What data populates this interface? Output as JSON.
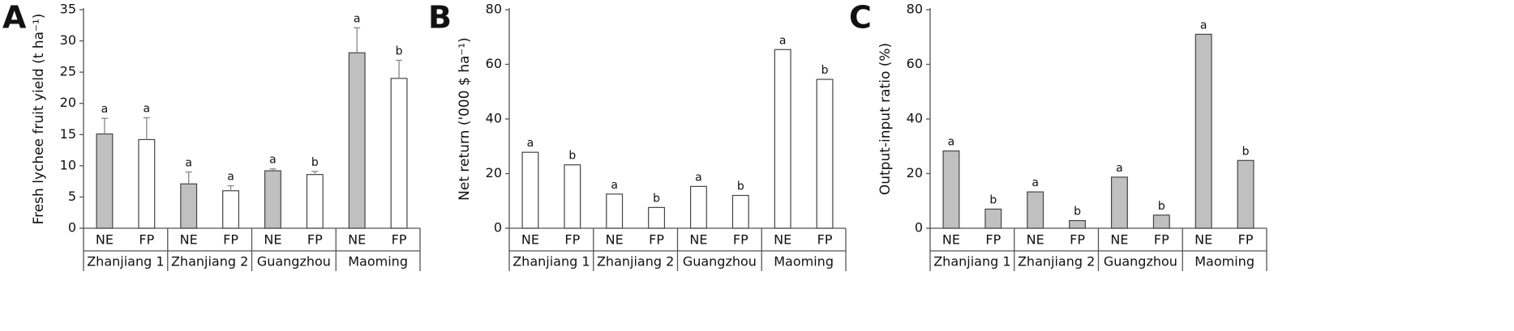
{
  "chart_data": [
    {
      "type": "bar",
      "panel": "A",
      "y_label": "Fresh lychee fruit yield (t ha⁻¹)",
      "groups": [
        "Zhanjiang 1",
        "Zhanjiang 2",
        "Guangzhou",
        "Maoming"
      ],
      "series": [
        {
          "name": "NE",
          "color": "#c0c0c0",
          "values": [
            15.1,
            7.1,
            9.2,
            28.1
          ],
          "errors": [
            2.5,
            1.9,
            0.3,
            4.0
          ],
          "letters": [
            "a",
            "a",
            "a",
            "a"
          ]
        },
        {
          "name": "FP",
          "color": "#ffffff",
          "values": [
            14.2,
            6.0,
            8.6,
            24.0
          ],
          "errors": [
            3.5,
            0.8,
            0.5,
            2.9
          ],
          "letters": [
            "a",
            "a",
            "b",
            "b"
          ]
        }
      ],
      "ylim": [
        0,
        35
      ],
      "yticks": [
        0,
        5,
        10,
        15,
        20,
        25,
        30,
        35
      ]
    },
    {
      "type": "bar",
      "panel": "B",
      "y_label": "Net return ('000 $ ha⁻¹)",
      "groups": [
        "Zhanjiang 1",
        "Zhanjiang 2",
        "Guangzhou",
        "Maoming"
      ],
      "series": [
        {
          "name": "NE",
          "color": "#ffffff",
          "values": [
            27.8,
            12.5,
            15.3,
            65.4
          ],
          "letters": [
            "a",
            "a",
            "a",
            "a"
          ]
        },
        {
          "name": "FP",
          "color": "#ffffff",
          "values": [
            23.2,
            7.6,
            12.0,
            54.5
          ],
          "letters": [
            "b",
            "b",
            "b",
            "b"
          ]
        }
      ],
      "ylim": [
        0,
        80
      ],
      "yticks": [
        0,
        20,
        40,
        60,
        80
      ]
    },
    {
      "type": "bar",
      "panel": "C",
      "y_label": "Output-input ratio (%)",
      "groups": [
        "Zhanjiang 1",
        "Zhanjiang 2",
        "Guangzhou",
        "Maoming"
      ],
      "series": [
        {
          "name": "NE",
          "color": "#c0c0c0",
          "values": [
            28.3,
            13.3,
            18.7,
            71.0
          ],
          "letters": [
            "a",
            "a",
            "a",
            "a"
          ]
        },
        {
          "name": "FP",
          "color": "#c0c0c0",
          "values": [
            7.0,
            2.8,
            4.8,
            24.8
          ],
          "letters": [
            "b",
            "b",
            "b",
            "b"
          ]
        }
      ],
      "ylim": [
        0,
        80
      ],
      "yticks": [
        0,
        20,
        40,
        60,
        80
      ]
    }
  ]
}
